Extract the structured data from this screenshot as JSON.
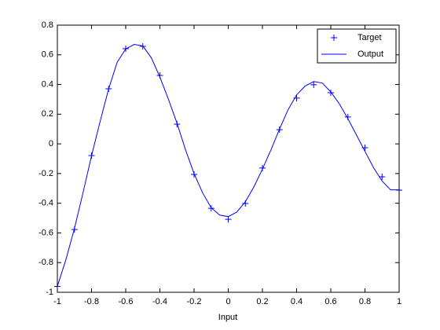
{
  "chart_data": {
    "type": "line",
    "x_label": "Input",
    "xlim": [
      -1,
      1
    ],
    "xticks": [
      -1,
      -0.8,
      -0.6,
      -0.4,
      -0.2,
      0,
      0.2,
      0.4,
      0.6,
      0.8,
      1
    ],
    "ylim": [
      -1,
      0.8
    ],
    "yticks": [
      -1,
      -0.8,
      -0.6,
      -0.4,
      -0.2,
      0,
      0.2,
      0.4,
      0.6,
      0.8
    ],
    "grid": false,
    "legend": "top-right",
    "series": [
      {
        "name": "Target",
        "color": "#0000ff",
        "style": "marker",
        "x": [
          -1,
          -0.9,
          -0.8,
          -0.7,
          -0.6,
          -0.5,
          -0.4,
          -0.3,
          -0.2,
          -0.1,
          0,
          0.1,
          0.2,
          0.3,
          0.4,
          0.5,
          0.6,
          0.7,
          0.8,
          0.9,
          1
        ],
        "values": [
          -0.96,
          -0.577,
          -0.079,
          0.371,
          0.641,
          0.657,
          0.461,
          0.133,
          -0.206,
          -0.434,
          -0.508,
          -0.402,
          -0.163,
          0.096,
          0.308,
          0.398,
          0.345,
          0.181,
          -0.026,
          -0.222,
          -0.312
        ]
      },
      {
        "name": "Output",
        "color": "#0000ff",
        "style": "line",
        "x": [
          -1,
          -0.95,
          -0.9,
          -0.85,
          -0.8,
          -0.75,
          -0.7,
          -0.65,
          -0.6,
          -0.55,
          -0.5,
          -0.45,
          -0.4,
          -0.35,
          -0.3,
          -0.25,
          -0.2,
          -0.15,
          -0.1,
          -0.05,
          0,
          0.05,
          0.1,
          0.15,
          0.2,
          0.25,
          0.3,
          0.35,
          0.4,
          0.45,
          0.5,
          0.55,
          0.6,
          0.65,
          0.7,
          0.75,
          0.8,
          0.85,
          0.9,
          0.95,
          1
        ],
        "values": [
          -0.96,
          -0.78,
          -0.57,
          -0.33,
          -0.08,
          0.15,
          0.37,
          0.55,
          0.64,
          0.67,
          0.66,
          0.58,
          0.45,
          0.3,
          0.14,
          -0.04,
          -0.2,
          -0.33,
          -0.43,
          -0.48,
          -0.49,
          -0.46,
          -0.39,
          -0.29,
          -0.17,
          -0.04,
          0.1,
          0.23,
          0.33,
          0.39,
          0.42,
          0.41,
          0.35,
          0.27,
          0.17,
          0.06,
          -0.05,
          -0.16,
          -0.25,
          -0.31,
          -0.31
        ]
      }
    ]
  }
}
